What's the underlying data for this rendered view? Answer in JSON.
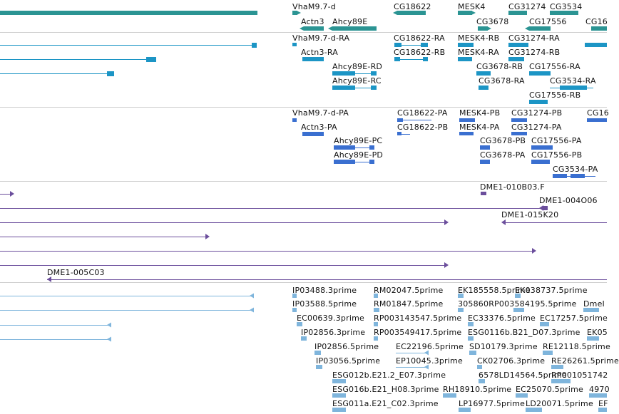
{
  "colors": {
    "gene": "#2b9493",
    "transcript_rna": "#1c95c5",
    "transcript_protein": "#3a6fd0",
    "clone": "#6b4e9c",
    "est": "#7fb5dc",
    "separator": "#cfcfcf"
  },
  "tracks": {
    "genes": {
      "labels": [
        "VhaM9.7-d",
        "CG18622",
        "MESK4",
        "CG31274",
        "CG3534",
        "Actn3",
        "Ahcy89E",
        "CG3678",
        "CG17556",
        "CG16"
      ]
    },
    "transcripts_rna": {
      "labels": [
        "VhaM9.7-d-RA",
        "CG18622-RA",
        "MESK4-RB",
        "CG31274-RA",
        "Actn3-RA",
        "CG18622-RB",
        "MESK4-RA",
        "CG31274-RB",
        "Ahcy89E-RD",
        "CG3678-RB",
        "CG17556-RA",
        "Ahcy89E-RC",
        "CG3678-RA",
        "CG3534-RA",
        "CG17556-RB"
      ]
    },
    "transcripts_protein": {
      "labels": [
        "VhaM9.7-d-PA",
        "CG18622-PA",
        "MESK4-PB",
        "CG31274-PB",
        "CG16",
        "Actn3-PA",
        "CG18622-PB",
        "MESK4-PA",
        "CG31274-PA",
        "Ahcy89E-PC",
        "CG3678-PB",
        "CG17556-PA",
        "Ahcy89E-PD",
        "CG3678-PA",
        "CG17556-PB",
        "CG3534-PA"
      ]
    },
    "clones": {
      "labels": [
        "DME1-010B03.F",
        "DME1-004O06",
        "DME1-015K20",
        "DME1-005C03"
      ]
    },
    "ests": {
      "labels": [
        "IP03488.3prime",
        "RM02047.5prime",
        "EK185558.5prime",
        "EK038737.5prime",
        "IP03588.5prime",
        "RM01847.5prime",
        "305860RP003584195.5prime",
        "DmeI",
        "EC00639.3prime",
        "RP003143547.5prime",
        "EC33376.5prime",
        "EC17257.5prime",
        "IP02856.3prime",
        "RP003549417.5prime",
        "ESG0116b.B21_D07.3prime",
        "EK05",
        "IP02856.5prime",
        "EC22196.5prime",
        "SD10179.3prime",
        "RE12118.5prime",
        "IP03056.5prime",
        "EP10045.3prime",
        "CK02706.3prime",
        "RE26261.5prime",
        "ESG012b.E21.2_E07.3prime",
        "6578LD14564.5prime",
        "RP001051742",
        "ESG016b.E21_H08.3prime",
        "RH18910.5prime",
        "EC25070.5prime",
        "4970",
        "ESG011a.E21_C02.3prime",
        "LP16977.5prime",
        "LD20071.5prime",
        "EF"
      ]
    }
  }
}
